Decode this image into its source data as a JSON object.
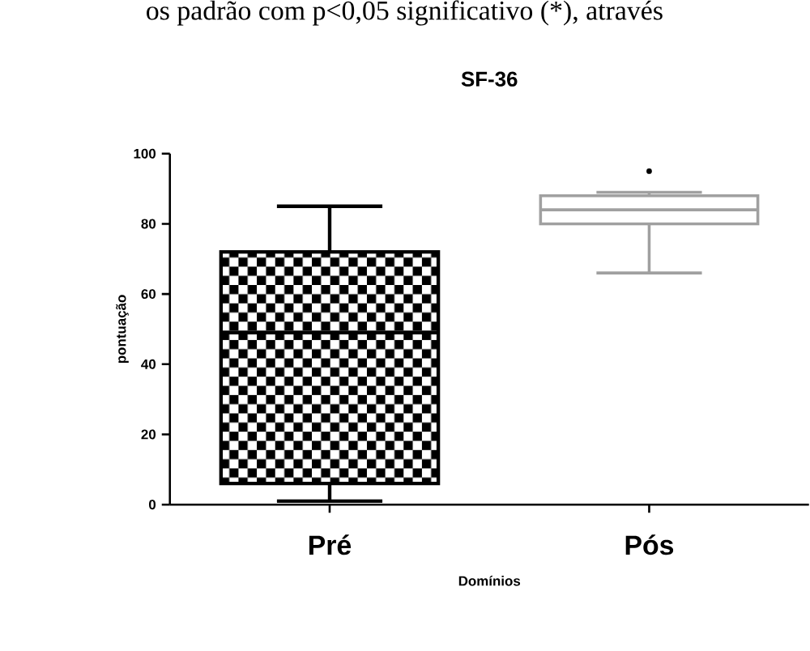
{
  "chart_data": {
    "type": "box",
    "title": "SF-36",
    "xlabel": "Domínios",
    "ylabel": "pontuação",
    "annotations": [
      "os padrão com p<0,05 significativo (*), através"
    ],
    "categories": [
      "Pré",
      "Pós"
    ],
    "colors": [
      "#000000",
      "#a0a0a0"
    ],
    "boxes": [
      {
        "low": 1,
        "q1": 6,
        "median": 49,
        "q3": 72,
        "high": 85
      },
      {
        "low": 66,
        "q1": 80,
        "median": 84,
        "q3": 88,
        "high": 89,
        "outliers": [
          95
        ]
      }
    ],
    "ylim": [
      0,
      100
    ],
    "yticks": [
      0,
      20,
      40,
      60,
      80,
      100
    ]
  }
}
